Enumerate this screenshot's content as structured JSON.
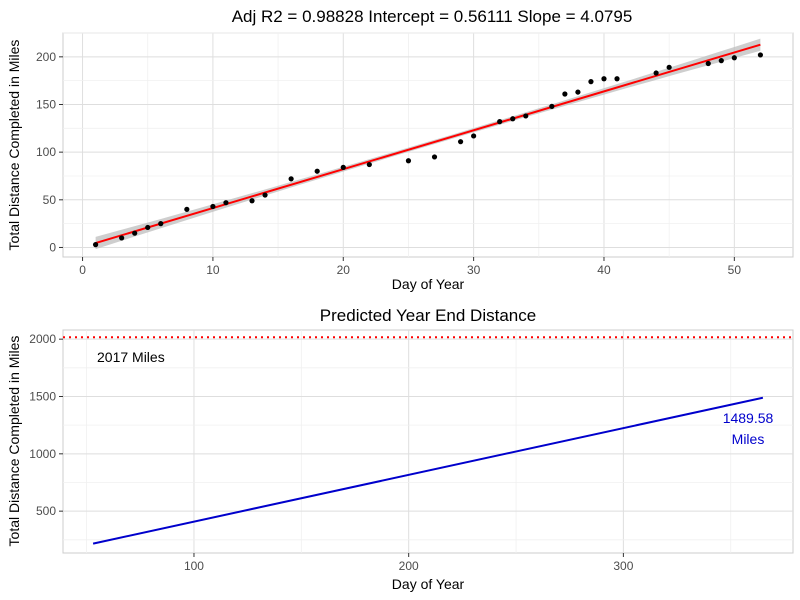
{
  "chart_data": [
    {
      "type": "scatter",
      "title": "Adj R2 =  0.98828 Intercept = 0.56111  Slope = 4.0795",
      "xlabel": "Day of Year",
      "ylabel": "Total Distance Completed in Miles",
      "xlim": [
        -1.5,
        54.5
      ],
      "ylim": [
        -10,
        225
      ],
      "xticks": [
        0,
        10,
        20,
        30,
        40,
        50
      ],
      "yticks": [
        0,
        50,
        100,
        150,
        200
      ],
      "grid": true,
      "colors": {
        "points": "#000000",
        "fit": "#ff0000",
        "band": "#bdbdbd"
      },
      "fit": {
        "intercept": 0.56111,
        "slope": 4.0795,
        "x_range": [
          1,
          52
        ]
      },
      "points": [
        [
          1,
          3
        ],
        [
          3,
          10
        ],
        [
          4,
          15
        ],
        [
          5,
          21
        ],
        [
          6,
          25
        ],
        [
          8,
          40
        ],
        [
          10,
          43
        ],
        [
          11,
          47
        ],
        [
          13,
          49
        ],
        [
          14,
          55
        ],
        [
          16,
          72
        ],
        [
          18,
          80
        ],
        [
          20,
          84
        ],
        [
          22,
          87
        ],
        [
          25,
          91
        ],
        [
          27,
          95
        ],
        [
          29,
          111
        ],
        [
          30,
          117
        ],
        [
          32,
          132
        ],
        [
          33,
          135
        ],
        [
          34,
          138
        ],
        [
          36,
          148
        ],
        [
          37,
          161
        ],
        [
          38,
          163
        ],
        [
          39,
          174
        ],
        [
          40,
          177
        ],
        [
          41,
          177
        ],
        [
          44,
          183
        ],
        [
          45,
          189
        ],
        [
          48,
          193
        ],
        [
          49,
          196
        ],
        [
          50,
          199
        ],
        [
          52,
          202
        ]
      ]
    },
    {
      "type": "line",
      "title": "Predicted Year End Distance",
      "xlabel": "Day of Year",
      "ylabel": "Total Distance Completed in Miles",
      "xlim": [
        39,
        379
      ],
      "ylim": [
        135,
        2080
      ],
      "xticks": [
        100,
        200,
        300
      ],
      "yticks": [
        500,
        1000,
        1500,
        2000
      ],
      "grid": true,
      "colors": {
        "line": "#0000cc",
        "target": "#ff0000",
        "label": "#0000cc"
      },
      "series": [
        {
          "x": [
            53,
            365
          ],
          "y": [
            216.8,
            1489.58
          ]
        }
      ],
      "hline": {
        "y": 2017,
        "style": "dotted",
        "label": "2017 Miles"
      },
      "annotations": [
        {
          "x": 365,
          "y": 1489.58,
          "value": "1489.58",
          "unit": "Miles"
        }
      ]
    }
  ]
}
